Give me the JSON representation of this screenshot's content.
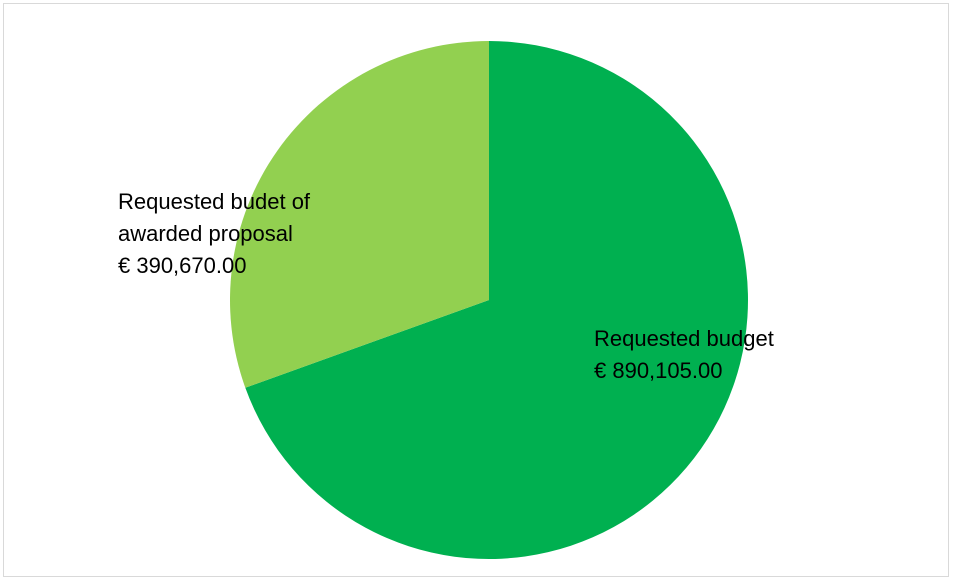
{
  "chart_data": {
    "type": "pie",
    "title": "",
    "legend": "none",
    "slices": [
      {
        "label_lines": [
          "Requested budget",
          "€ 890,105.00"
        ],
        "category": "Requested budget",
        "value": 890105.0,
        "display_value": "€ 890,105.00",
        "color": "#00b050"
      },
      {
        "label_lines": [
          "Requested budet of",
          "awarded proposal",
          "€ 390,670.00"
        ],
        "category": "Requested budet of awarded proposal",
        "value": 390670.0,
        "display_value": "€ 390,670.00",
        "color": "#92d050"
      }
    ]
  }
}
